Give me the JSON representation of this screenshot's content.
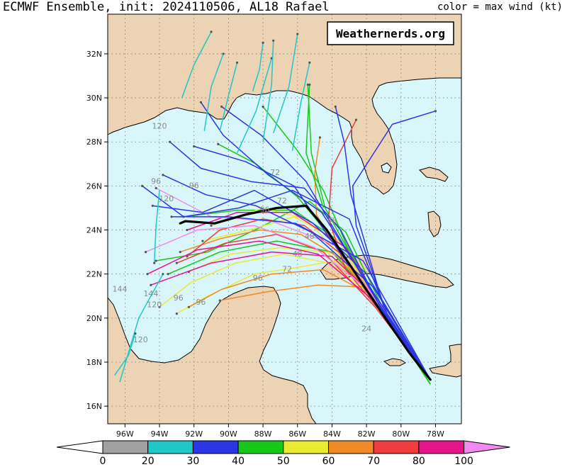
{
  "header": {
    "title": "ECMWF Ensemble, init: 2024110506, AL18 Rafael",
    "legend_note": "color = max wind (kt)"
  },
  "watermark": "Weathernerds.org",
  "map": {
    "lon_range": [
      -97,
      -76.5
    ],
    "lat_range": [
      15.2,
      33.8
    ],
    "lat_labels": [
      "16N",
      "18N",
      "20N",
      "22N",
      "24N",
      "26N",
      "28N",
      "30N",
      "32N"
    ],
    "lon_labels": [
      "96W",
      "94W",
      "92W",
      "90W",
      "88W",
      "86W",
      "84W",
      "82W",
      "80W",
      "78W"
    ],
    "ocean_color": "#d9f7fb",
    "land_color": "#ebd3b4",
    "grid": "dotted"
  },
  "colorbar": {
    "ticks": [
      "0",
      "20",
      "30",
      "40",
      "50",
      "60",
      "70",
      "80",
      "100"
    ],
    "colors": [
      "#ffffff",
      "#a0a0a0",
      "#1ec8c8",
      "#2b36e6",
      "#18c818",
      "#eaea33",
      "#f08a28",
      "#f03c3c",
      "#e6148c",
      "#f08af0"
    ]
  },
  "hour_labels": [
    "120",
    "96",
    "96",
    "120",
    "96",
    "72",
    "72",
    "48",
    "48",
    "72",
    "144",
    "144",
    "120",
    "96",
    "96",
    "96",
    "120",
    "48",
    "24"
  ],
  "mean_track": [
    [
      -78.3,
      17.2
    ],
    [
      -79.5,
      18.4
    ],
    [
      -81.0,
      20.1
    ],
    [
      -82.7,
      22.1
    ],
    [
      -84.3,
      24.0
    ],
    [
      -85.5,
      25.1
    ],
    [
      -87.2,
      25.0
    ],
    [
      -89.0,
      24.7
    ],
    [
      -90.8,
      24.3
    ],
    [
      -92.5,
      24.4
    ],
    [
      -92.8,
      24.3
    ]
  ],
  "member_tracks": [
    {
      "wind": 40,
      "points": [
        [
          -78.3,
          17.0
        ],
        [
          -80.8,
          20.0
        ],
        [
          -83.6,
          23.5
        ],
        [
          -86.2,
          24.9
        ],
        [
          -89.5,
          24.9
        ],
        [
          -92.6,
          24.6
        ]
      ]
    },
    {
      "wind": 40,
      "points": [
        [
          -78.3,
          17.0
        ],
        [
          -81.0,
          20.2
        ],
        [
          -83.2,
          23.4
        ],
        [
          -84.5,
          25.8
        ],
        [
          -86.0,
          27.6
        ],
        [
          -88.0,
          29.6
        ]
      ]
    },
    {
      "wind": 40,
      "points": [
        [
          -78.3,
          17.0
        ],
        [
          -81.3,
          20.6
        ],
        [
          -83.8,
          23.4
        ],
        [
          -86.0,
          25.5
        ],
        [
          -88.4,
          27.0
        ],
        [
          -90.6,
          27.9
        ]
      ]
    },
    {
      "wind": 40,
      "points": [
        [
          -78.3,
          17.0
        ],
        [
          -80.6,
          19.8
        ],
        [
          -83.0,
          23.0
        ],
        [
          -84.4,
          25.0
        ],
        [
          -85.2,
          27.5
        ],
        [
          -85.4,
          30.6
        ]
      ]
    },
    {
      "wind": 40,
      "points": [
        [
          -78.3,
          17.0
        ],
        [
          -81.2,
          20.7
        ],
        [
          -83.2,
          23.9
        ],
        [
          -85.3,
          25.3
        ],
        [
          -88.2,
          24.1
        ],
        [
          -91.2,
          23.0
        ],
        [
          -94.2,
          22.6
        ]
      ]
    },
    {
      "wind": 40,
      "points": [
        [
          -78.3,
          17.0
        ],
        [
          -81.5,
          20.8
        ],
        [
          -84.0,
          23.0
        ],
        [
          -87.2,
          23.5
        ],
        [
          -90.5,
          23.0
        ],
        [
          -93.5,
          22.0
        ]
      ]
    },
    {
      "wind": 50,
      "points": [
        [
          -78.3,
          17.2
        ],
        [
          -80.9,
          20.2
        ],
        [
          -83.5,
          22.8
        ],
        [
          -85.5,
          24.5
        ],
        [
          -88.0,
          25.0
        ],
        [
          -91.0,
          24.2
        ]
      ]
    },
    {
      "wind": 50,
      "points": [
        [
          -78.3,
          17.2
        ],
        [
          -81.6,
          21.0
        ],
        [
          -84.3,
          23.0
        ],
        [
          -87.0,
          23.2
        ],
        [
          -89.9,
          22.9
        ],
        [
          -92.3,
          22.1
        ]
      ]
    },
    {
      "wind": 50,
      "points": [
        [
          -78.3,
          17.2
        ],
        [
          -81.8,
          21.1
        ],
        [
          -84.2,
          22.5
        ],
        [
          -86.8,
          22.9
        ],
        [
          -89.6,
          22.5
        ],
        [
          -92.2,
          21.6
        ],
        [
          -94.0,
          20.5
        ]
      ]
    },
    {
      "wind": 50,
      "points": [
        [
          -78.3,
          17.2
        ],
        [
          -81.3,
          20.6
        ],
        [
          -83.6,
          23.5
        ],
        [
          -86.2,
          24.6
        ],
        [
          -88.8,
          24.0
        ],
        [
          -91.5,
          23.5
        ]
      ]
    },
    {
      "wind": 50,
      "points": [
        [
          -78.3,
          17.2
        ],
        [
          -81.4,
          20.8
        ],
        [
          -83.8,
          22.6
        ],
        [
          -86.0,
          22.3
        ],
        [
          -88.5,
          22.0
        ],
        [
          -91.2,
          21.0
        ],
        [
          -93.0,
          20.2
        ]
      ]
    },
    {
      "wind": 60,
      "points": [
        [
          -78.3,
          17.2
        ],
        [
          -81.2,
          20.6
        ],
        [
          -83.7,
          22.8
        ],
        [
          -85.8,
          23.8
        ],
        [
          -88.2,
          24.0
        ],
        [
          -90.5,
          23.6
        ],
        [
          -92.8,
          23.0
        ]
      ]
    },
    {
      "wind": 60,
      "points": [
        [
          -78.3,
          17.2
        ],
        [
          -81.6,
          21.0
        ],
        [
          -84.5,
          22.2
        ],
        [
          -87.5,
          22.0
        ],
        [
          -90.4,
          21.3
        ],
        [
          -92.3,
          20.5
        ]
      ]
    },
    {
      "wind": 60,
      "points": [
        [
          -78.3,
          17.2
        ],
        [
          -81.3,
          20.4
        ],
        [
          -83.3,
          22.6
        ],
        [
          -84.9,
          24.7
        ],
        [
          -85.0,
          26.6
        ],
        [
          -84.7,
          28.2
        ]
      ]
    },
    {
      "wind": 60,
      "points": [
        [
          -78.3,
          17.2
        ],
        [
          -81.9,
          21.4
        ],
        [
          -84.8,
          21.5
        ],
        [
          -87.7,
          21.2
        ],
        [
          -90.5,
          20.8
        ]
      ]
    },
    {
      "wind": 70,
      "points": [
        [
          -78.3,
          17.2
        ],
        [
          -81.0,
          20.4
        ],
        [
          -83.3,
          22.8
        ],
        [
          -85.6,
          24.2
        ],
        [
          -88.0,
          24.5
        ],
        [
          -90.5,
          24.0
        ],
        [
          -92.4,
          22.8
        ]
      ]
    },
    {
      "wind": 70,
      "points": [
        [
          -78.3,
          17.2
        ],
        [
          -81.2,
          20.3
        ],
        [
          -83.2,
          22.2
        ],
        [
          -84.2,
          24.5
        ],
        [
          -84.0,
          26.8
        ],
        [
          -82.6,
          29.0
        ]
      ]
    },
    {
      "wind": 70,
      "points": [
        [
          -78.3,
          17.2
        ],
        [
          -81.5,
          20.5
        ],
        [
          -84.5,
          23.0
        ],
        [
          -87.2,
          23.8
        ],
        [
          -90.2,
          23.4
        ],
        [
          -93.0,
          22.5
        ]
      ]
    },
    {
      "wind": 80,
      "points": [
        [
          -78.3,
          17.2
        ],
        [
          -81.4,
          20.9
        ],
        [
          -84.0,
          22.8
        ],
        [
          -87.5,
          23.0
        ],
        [
          -91.0,
          22.5
        ],
        [
          -94.5,
          21.5
        ]
      ]
    },
    {
      "wind": 80,
      "points": [
        [
          -78.3,
          17.2
        ],
        [
          -81.6,
          20.8
        ],
        [
          -84.8,
          22.9
        ],
        [
          -88.2,
          23.5
        ],
        [
          -91.8,
          23.1
        ],
        [
          -94.7,
          22.0
        ]
      ]
    },
    {
      "wind": 80,
      "points": [
        [
          -78.3,
          17.2
        ],
        [
          -80.7,
          20.0
        ],
        [
          -83.2,
          23.2
        ],
        [
          -86.3,
          24.8
        ],
        [
          -89.5,
          24.8
        ],
        [
          -92.4,
          24.0
        ]
      ]
    },
    {
      "wind": 100,
      "points": [
        [
          -78.3,
          17.2
        ],
        [
          -81.8,
          21.2
        ],
        [
          -85.0,
          23.2
        ],
        [
          -88.5,
          24.2
        ],
        [
          -91.8,
          24.0
        ],
        [
          -94.8,
          23.0
        ]
      ]
    },
    {
      "wind": 100,
      "points": [
        [
          -78.3,
          17.2
        ],
        [
          -81.0,
          20.4
        ],
        [
          -83.8,
          23.3
        ],
        [
          -87.5,
          24.4
        ],
        [
          -91.0,
          24.6
        ],
        [
          -94.2,
          25.9
        ]
      ]
    },
    {
      "wind": 30,
      "points": [
        [
          -78.3,
          17.2
        ],
        [
          -81.4,
          20.8
        ],
        [
          -84.0,
          24.2
        ],
        [
          -85.5,
          26.2
        ],
        [
          -88.1,
          28.3
        ],
        [
          -90.4,
          29.6
        ]
      ]
    },
    {
      "wind": 30,
      "points": [
        [
          -78.3,
          17.2
        ],
        [
          -81.8,
          21.1
        ],
        [
          -84.2,
          23.7
        ],
        [
          -86.2,
          26.0
        ],
        [
          -89.0,
          27.1
        ],
        [
          -92.0,
          27.8
        ]
      ]
    },
    {
      "wind": 30,
      "points": [
        [
          -78.3,
          17.2
        ],
        [
          -81.2,
          20.5
        ],
        [
          -83.5,
          24.0
        ],
        [
          -85.6,
          25.9
        ],
        [
          -88.7,
          26.2
        ],
        [
          -91.6,
          26.8
        ],
        [
          -93.4,
          28.0
        ]
      ]
    },
    {
      "wind": 30,
      "points": [
        [
          -78.3,
          17.2
        ],
        [
          -80.8,
          20.2
        ],
        [
          -83.0,
          24.5
        ],
        [
          -86.3,
          25.8
        ],
        [
          -89.4,
          25.0
        ],
        [
          -92.6,
          24.6
        ],
        [
          -95.0,
          26.0
        ]
      ]
    },
    {
      "wind": 30,
      "points": [
        [
          -78.3,
          17.2
        ],
        [
          -81.0,
          20.6
        ],
        [
          -82.6,
          24.2
        ],
        [
          -82.8,
          26.0
        ],
        [
          -80.5,
          28.8
        ],
        [
          -78.0,
          29.4
        ]
      ]
    },
    {
      "wind": 30,
      "points": [
        [
          -78.3,
          17.2
        ],
        [
          -81.6,
          21.4
        ],
        [
          -85.2,
          23.9
        ],
        [
          -88.4,
          25.1
        ],
        [
          -91.3,
          25.6
        ],
        [
          -93.8,
          26.5
        ]
      ]
    },
    {
      "wind": 30,
      "points": [
        [
          -78.3,
          17.2
        ],
        [
          -81.3,
          20.8
        ],
        [
          -84.6,
          24.8
        ],
        [
          -87.7,
          26.5
        ],
        [
          -90.3,
          28.3
        ],
        [
          -91.6,
          29.8
        ]
      ]
    },
    {
      "wind": 30,
      "points": [
        [
          -78.3,
          17.2
        ],
        [
          -82.0,
          22.0
        ],
        [
          -85.1,
          24.3
        ],
        [
          -88.5,
          25.8
        ],
        [
          -91.5,
          24.8
        ],
        [
          -94.4,
          25.1
        ]
      ]
    },
    {
      "wind": 30,
      "points": [
        [
          -78.3,
          17.2
        ],
        [
          -82.2,
          22.6
        ],
        [
          -86.1,
          24.3
        ],
        [
          -90.0,
          24.6
        ],
        [
          -93.3,
          24.6
        ]
      ]
    },
    {
      "wind": 20,
      "points": [
        [
          -96.3,
          17.1
        ],
        [
          -95.2,
          20.0
        ],
        [
          -93.8,
          22.0
        ]
      ]
    },
    {
      "wind": 20,
      "points": [
        [
          -89.5,
          27.5
        ],
        [
          -88.4,
          29.4
        ],
        [
          -87.5,
          31.8
        ]
      ]
    },
    {
      "wind": 20,
      "points": [
        [
          -90.5,
          28.5
        ],
        [
          -90.0,
          30.1
        ],
        [
          -89.5,
          31.6
        ]
      ]
    },
    {
      "wind": 20,
      "points": [
        [
          -91.4,
          28.5
        ],
        [
          -91.0,
          30.5
        ],
        [
          -90.3,
          32.0
        ]
      ]
    },
    {
      "wind": 20,
      "points": [
        [
          -92.7,
          30.0
        ],
        [
          -92.0,
          31.5
        ],
        [
          -91.0,
          33.0
        ]
      ]
    },
    {
      "wind": 20,
      "points": [
        [
          -86.3,
          27.6
        ],
        [
          -85.8,
          29.8
        ],
        [
          -85.3,
          31.6
        ]
      ]
    },
    {
      "wind": 20,
      "points": [
        [
          -88.0,
          28.0
        ],
        [
          -87.5,
          30.6
        ],
        [
          -87.4,
          32.6
        ]
      ]
    },
    {
      "wind": 20,
      "points": [
        [
          -87.4,
          28.4
        ],
        [
          -86.5,
          30.5
        ],
        [
          -86.0,
          32.9
        ]
      ]
    },
    {
      "wind": 20,
      "points": [
        [
          -94.0,
          25.8
        ],
        [
          -94.2,
          24.2
        ],
        [
          -94.3,
          22.5
        ]
      ]
    },
    {
      "wind": 20,
      "points": [
        [
          -96.6,
          17.4
        ],
        [
          -95.8,
          18.3
        ],
        [
          -95.4,
          19.3
        ]
      ]
    },
    {
      "wind": 20,
      "points": [
        [
          -88.6,
          30.3
        ],
        [
          -88.2,
          31.3
        ],
        [
          -88.0,
          32.5
        ]
      ]
    },
    {
      "wind": 40,
      "points": [
        [
          -84.5,
          25.0
        ],
        [
          -85.5,
          27.5
        ],
        [
          -85.3,
          30.6
        ]
      ]
    },
    {
      "wind": 30,
      "points": [
        [
          -81.0,
          20.5
        ],
        [
          -82.9,
          25.6
        ],
        [
          -83.3,
          28.0
        ],
        [
          -83.8,
          29.6
        ]
      ]
    }
  ]
}
